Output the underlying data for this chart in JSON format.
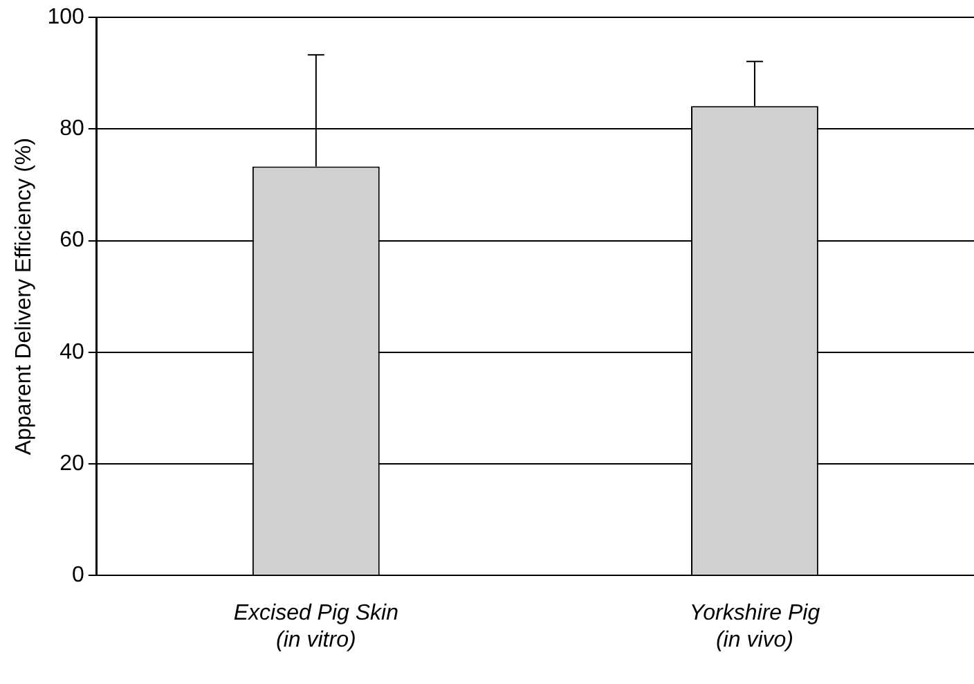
{
  "chart_data": {
    "type": "bar",
    "ylabel": "Apparent Delivery Efficiency (%)",
    "categories": [
      "Excised Pig Skin\n(in vitro)",
      "Yorkshire Pig\n(in vivo)"
    ],
    "values": [
      73.3,
      84.1
    ],
    "errors": [
      20,
      8
    ],
    "color": "#d0d0d0",
    "ylim": [
      0,
      100
    ],
    "yticks": [
      0,
      20,
      40,
      60,
      80,
      100
    ],
    "grid": "y"
  }
}
